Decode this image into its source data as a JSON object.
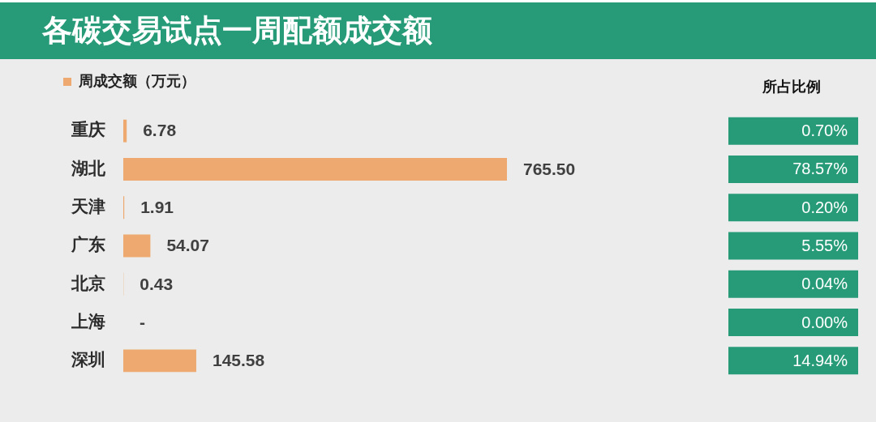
{
  "chart_data": {
    "type": "bar",
    "orientation": "horizontal",
    "title": "各碳交易试点一周配额成交额",
    "categories": [
      "重庆",
      "湖北",
      "天津",
      "广东",
      "北京",
      "上海",
      "深圳"
    ],
    "series": [
      {
        "name": "周成交额（万元）",
        "color": "#eda96f",
        "values": [
          6.78,
          765.5,
          1.91,
          54.07,
          0.43,
          null,
          145.58
        ],
        "value_labels": [
          "6.78",
          "765.50",
          "1.91",
          "54.07",
          "0.43",
          "-",
          "145.58"
        ]
      }
    ],
    "legend": "top left",
    "tick_labels": "y",
    "annotations": [
      "所占比例",
      "0.70%",
      "78.57%",
      "0.20%",
      "5.55%",
      "0.04%",
      "0.00%",
      "14.94%"
    ]
  }
}
